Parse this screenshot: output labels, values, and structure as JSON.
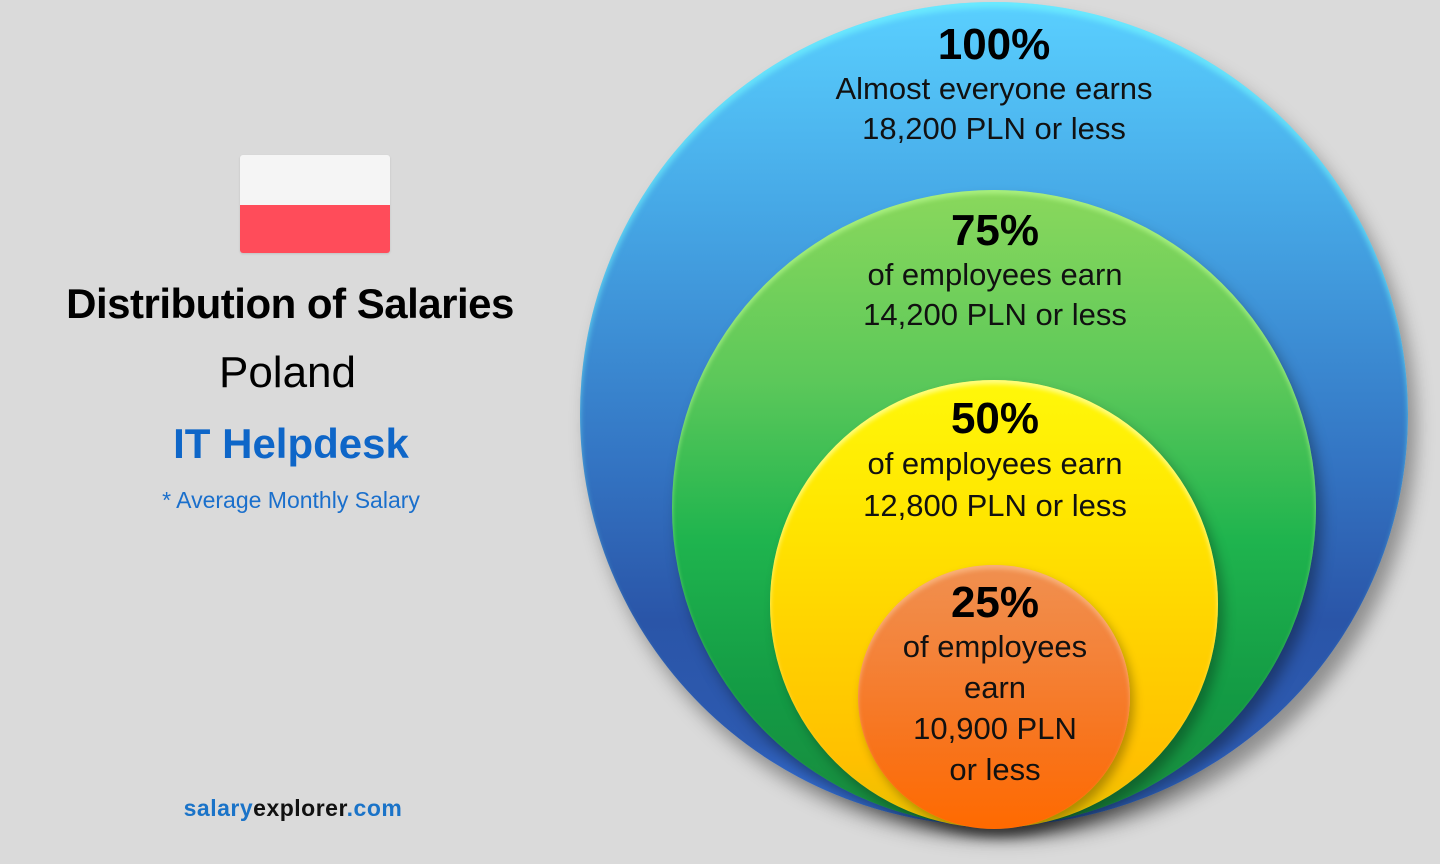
{
  "left_panel": {
    "flag": {
      "name": "poland-flag",
      "colors": [
        "#f5f5f5",
        "#ff4c5a"
      ]
    },
    "title": "Distribution of Salaries",
    "country": "Poland",
    "job_title": "IT Helpdesk",
    "note": "* Average Monthly Salary"
  },
  "brand": {
    "part1": "salary",
    "part2": "explorer",
    "part3": ".com"
  },
  "levels": [
    {
      "percent": "100%",
      "line1": "Almost everyone earns",
      "line2": "18,200 PLN or less",
      "color": "#3476c4"
    },
    {
      "percent": "75%",
      "line1": "of employees earn",
      "line2": "14,200 PLN or less",
      "color": "#1fb44e"
    },
    {
      "percent": "50%",
      "line1": "of employees earn",
      "line2": "12,800 PLN or less",
      "color": "#ffd000"
    },
    {
      "percent": "25%",
      "line1": "of employees",
      "line2": "earn",
      "line3": "10,900 PLN",
      "line4": "or less",
      "color": "#f8731a"
    }
  ],
  "chart_data": {
    "type": "nested-ellipse",
    "title": "Distribution of Salaries",
    "subtitle": "Poland - IT Helpdesk",
    "note": "* Average Monthly Salary",
    "unit": "PLN per month",
    "categories": [
      "25%",
      "50%",
      "75%",
      "100%"
    ],
    "values": [
      10900,
      12800,
      14200,
      18200
    ],
    "labels": [
      "25% of employees earn 10,900 PLN or less",
      "50% of employees earn 12,800 PLN or less",
      "75% of employees earn 14,200 PLN or less",
      "100% Almost everyone earns 18,200 PLN or less"
    ],
    "colors": [
      "#f8731a",
      "#ffd000",
      "#1fb44e",
      "#3476c4"
    ]
  }
}
